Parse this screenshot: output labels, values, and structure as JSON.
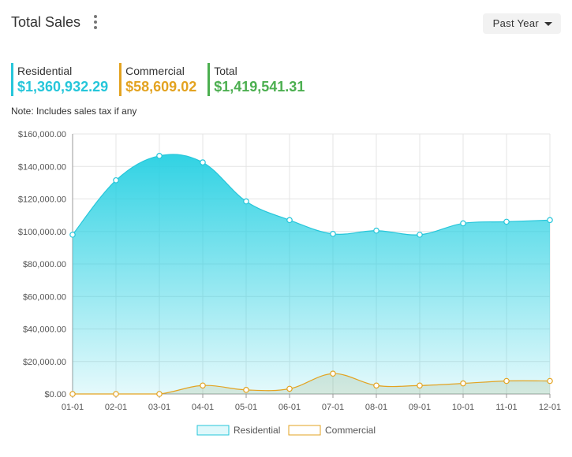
{
  "header": {
    "title": "Total Sales",
    "period_label": "Past Year"
  },
  "summary": [
    {
      "label": "Residential",
      "value": "$1,360,932.29",
      "color": "#26c6da"
    },
    {
      "label": "Commercial",
      "value": "$58,609.02",
      "color": "#e3a321"
    },
    {
      "label": "Total",
      "value": "$1,419,541.31",
      "color": "#4caf50"
    }
  ],
  "note": "Note: Includes sales tax if any",
  "chart_data": {
    "type": "area",
    "categories": [
      "01-01",
      "02-01",
      "03-01",
      "04-01",
      "05-01",
      "06-01",
      "07-01",
      "08-01",
      "09-01",
      "10-01",
      "11-01",
      "12-01"
    ],
    "series": [
      {
        "name": "Residential",
        "color": "#26c6da",
        "values": [
          98000,
          131500,
          146500,
          142500,
          118500,
          107000,
          98500,
          100500,
          98000,
          105000,
          106000,
          107000
        ]
      },
      {
        "name": "Commercial",
        "color": "#e3a321",
        "values": [
          0,
          0,
          0,
          5200,
          2500,
          3200,
          12500,
          5200,
          5200,
          6500,
          8000,
          8000
        ]
      }
    ],
    "ylim": [
      0,
      160000
    ],
    "yticks": [
      "$160,000.00",
      "$140,000.00",
      "$120,000.00",
      "$100,000.00",
      "$80,000.00",
      "$60,000.00",
      "$40,000.00",
      "$20,000.00",
      "$0.00"
    ],
    "grid": true,
    "legend_position": "bottom"
  }
}
